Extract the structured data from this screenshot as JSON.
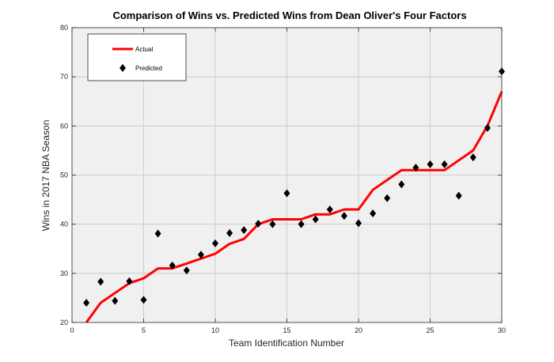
{
  "chart_data": {
    "type": "line",
    "title": "Comparison of Wins vs. Predicted Wins from Dean Oliver's Four Factors",
    "xlabel": "Team Identification Number",
    "ylabel": "Wins in 2017 NBA Season",
    "xlim": [
      0,
      30
    ],
    "ylim": [
      20,
      80
    ],
    "xticks": [
      0,
      5,
      10,
      15,
      20,
      25,
      30
    ],
    "yticks": [
      20,
      30,
      40,
      50,
      60,
      70,
      80
    ],
    "grid": true,
    "legend_position": "top-left",
    "x": [
      1,
      2,
      3,
      4,
      5,
      6,
      7,
      8,
      9,
      10,
      11,
      12,
      13,
      14,
      15,
      16,
      17,
      18,
      19,
      20,
      21,
      22,
      23,
      24,
      25,
      26,
      27,
      28,
      29,
      30
    ],
    "series": [
      {
        "name": "Actual",
        "style": "line",
        "color": "#ff0000",
        "values": [
          20,
          24,
          26,
          28,
          29,
          31,
          31,
          32,
          33,
          34,
          36,
          37,
          40,
          41,
          41,
          41,
          42,
          42,
          43,
          43,
          47,
          49,
          51,
          51,
          51,
          51,
          53,
          55,
          60,
          67
        ]
      },
      {
        "name": "Predicted",
        "style": "marker-diamond",
        "color": "#000000",
        "values": [
          24,
          28.3,
          24.4,
          28.4,
          24.6,
          38.1,
          31.6,
          30.6,
          33.8,
          36.1,
          38.2,
          38.8,
          40.1,
          40,
          46.3,
          40,
          41,
          43,
          41.7,
          40.2,
          42.2,
          45.3,
          48.1,
          51.5,
          52.2,
          52.2,
          45.8,
          53.6,
          59.6,
          71.1
        ]
      }
    ]
  }
}
